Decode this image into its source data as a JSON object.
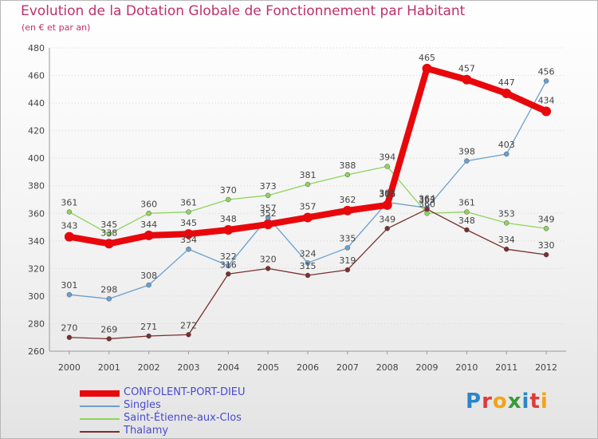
{
  "header": {
    "title": "Evolution de la Dotation Globale de Fonctionnement par Habitant",
    "subtitle": "(en € et par an)"
  },
  "brand": {
    "name": "Proxiti",
    "letters": [
      "P",
      "r",
      "o",
      "x",
      "i",
      "t",
      "i"
    ],
    "colors": [
      "#2a86c8",
      "#e03a3a",
      "#f4a21a",
      "#3a9a3a",
      "#2a86c8",
      "#e03a3a",
      "#f4a21a"
    ]
  },
  "colors": {
    "title": "#c0306a",
    "axis_text": "#444444",
    "legend_text": "#4a4ad0"
  },
  "chart_data": {
    "type": "line",
    "title": "Evolution de la Dotation Globale de Fonctionnement par Habitant",
    "subtitle": "(en € et par an)",
    "xlabel": "",
    "ylabel": "",
    "ylim": [
      260,
      480
    ],
    "yticks": [
      260,
      280,
      300,
      320,
      340,
      360,
      380,
      400,
      420,
      440,
      460,
      480
    ],
    "categories": [
      "2000",
      "2001",
      "2002",
      "2003",
      "2004",
      "2005",
      "2006",
      "2007",
      "2008",
      "2009",
      "2010",
      "2011",
      "2012"
    ],
    "grid": true,
    "legend_position": "bottom-left",
    "series": [
      {
        "name": "CONFOLENT-PORT-DIEU",
        "color": "#e8080c",
        "style": "thick",
        "values": [
          343,
          338,
          344,
          345,
          348,
          352,
          357,
          362,
          366,
          465,
          457,
          447,
          434
        ],
        "labels": [
          "343",
          "338",
          "344",
          "345",
          "348",
          "352",
          "357",
          "362",
          "366",
          "465",
          "457",
          "447",
          "434"
        ]
      },
      {
        "name": "Singles",
        "color": "#6a9fd0",
        "style": "thin",
        "values": [
          301,
          298,
          308,
          334,
          322,
          357,
          324,
          335,
          368,
          364,
          398,
          403,
          456
        ],
        "labels": [
          "301",
          "298",
          "308",
          "334",
          "322",
          "357",
          "324",
          "335",
          "368",
          "364",
          "398",
          "403",
          "456"
        ]
      },
      {
        "name": "Saint-Étienne-aux-Clos",
        "color": "#8ed45a",
        "style": "thin",
        "values": [
          361,
          345,
          360,
          361,
          370,
          373,
          381,
          388,
          394,
          360,
          361,
          353,
          349
        ],
        "labels": [
          "361",
          "345",
          "360",
          "361",
          "370",
          "373",
          "381",
          "388",
          "394",
          "360",
          "361",
          "353",
          "349"
        ]
      },
      {
        "name": "Thalamy",
        "color": "#7a2f2f",
        "style": "thin",
        "values": [
          270,
          269,
          271,
          272,
          316,
          320,
          315,
          319,
          349,
          363,
          348,
          334,
          330
        ],
        "labels": [
          "270",
          "269",
          "271",
          "272",
          "316",
          "320",
          "315",
          "319",
          "349",
          "363",
          "348",
          "334",
          "330"
        ]
      }
    ]
  }
}
